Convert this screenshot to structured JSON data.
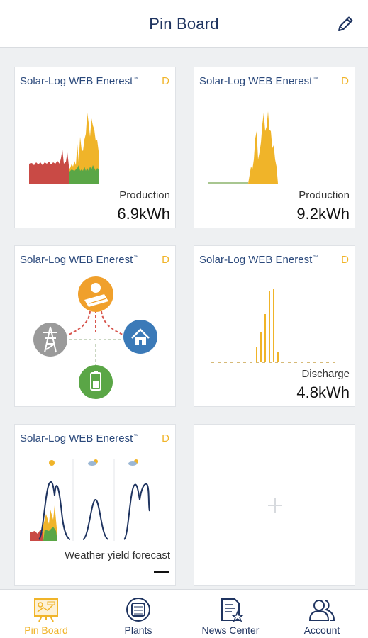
{
  "header": {
    "title": "Pin Board",
    "edit_icon": "pencil-icon"
  },
  "cards": [
    {
      "title": "Solar-Log WEB Enerest",
      "tm": "™",
      "period": "D",
      "metric_label": "Production",
      "metric_value": "6.9kWh"
    },
    {
      "title": "Solar-Log WEB Enerest",
      "tm": "™",
      "period": "D",
      "metric_label": "Production",
      "metric_value": "9.2kWh"
    },
    {
      "title": "Solar-Log WEB Enerest",
      "tm": "™",
      "period": "D"
    },
    {
      "title": "Solar-Log WEB Enerest",
      "tm": "™",
      "period": "D",
      "metric_label": "Discharge",
      "metric_value": "4.8kWh"
    },
    {
      "title": "Solar-Log WEB Enerest",
      "tm": "™",
      "period": "D",
      "metric_label": "Weather yield forecast",
      "metric_value": "—"
    }
  ],
  "add_card": {
    "icon": "plus-icon"
  },
  "nav": [
    {
      "label": "Pin Board",
      "icon": "pin-board-icon",
      "active": true
    },
    {
      "label": "Plants",
      "icon": "plants-icon",
      "active": false
    },
    {
      "label": "News Center",
      "icon": "news-center-icon",
      "active": false
    },
    {
      "label": "Account",
      "icon": "account-icon",
      "active": false
    }
  ],
  "colors": {
    "accent": "#f0b429",
    "brand_navy": "#1f3460",
    "consumption_red": "#c94a45",
    "self_use_green": "#5aa646",
    "grid_gray": "#9a9a9a",
    "home_blue": "#3b7ab8"
  }
}
